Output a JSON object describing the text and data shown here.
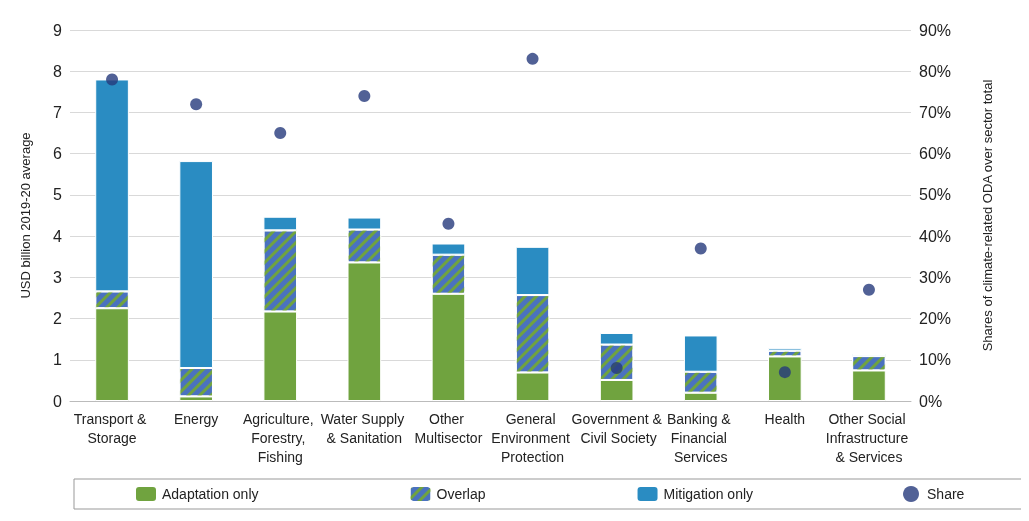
{
  "chart_data": {
    "type": "bar",
    "stacked": true,
    "categories": [
      "Transport & Storage",
      "Energy",
      "Agriculture, Forestry, Fishing",
      "Water Supply & Sanitation",
      "Other Multisector",
      "General Environment Protection",
      "Government & Civil Society",
      "Banking & Financial Services",
      "Health",
      "Other Social Infrastructure & Services"
    ],
    "series": [
      {
        "name": "Adaptation only",
        "color": "#70a33f",
        "values": [
          2.25,
          0.11,
          2.17,
          3.36,
          2.6,
          0.69,
          0.51,
          0.2,
          1.08,
          0.74
        ]
      },
      {
        "name": "Overlap",
        "color": "#4a72bf",
        "values": [
          0.41,
          0.69,
          1.97,
          0.8,
          0.95,
          1.88,
          0.86,
          0.51,
          0.14,
          0.35
        ]
      },
      {
        "name": "Mitigation only",
        "color": "#2a8cc2",
        "values": [
          5.14,
          5.02,
          0.33,
          0.29,
          0.27,
          1.17,
          0.28,
          0.88,
          0.06,
          0.05
        ]
      },
      {
        "name": "Share",
        "type": "scatter",
        "axis": "y2",
        "color": "#253a7c",
        "marker": "circle",
        "values": [
          78,
          72,
          65,
          74,
          43,
          83,
          8,
          37,
          7,
          27
        ]
      }
    ],
    "ylabel": "USD billion 2019-20 average",
    "y2label": "Shares of climate-related ODA over sector total",
    "ylim": [
      0,
      9
    ],
    "yticks": [
      0,
      1,
      2,
      3,
      4,
      5,
      6,
      7,
      8,
      9
    ],
    "y2lim": [
      0,
      90
    ],
    "y2ticks": [
      {
        "value": 0,
        "label": "0%"
      },
      {
        "value": 10,
        "label": "10%"
      },
      {
        "value": 20,
        "label": "20%"
      },
      {
        "value": 30,
        "label": "30%"
      },
      {
        "value": 40,
        "label": "40%"
      },
      {
        "value": 50,
        "label": "50%"
      },
      {
        "value": 60,
        "label": "60%"
      },
      {
        "value": 70,
        "label": "70%"
      },
      {
        "value": 80,
        "label": "80%"
      },
      {
        "value": 90,
        "label": "90%"
      }
    ],
    "grid": "y",
    "legend": "bottom"
  }
}
